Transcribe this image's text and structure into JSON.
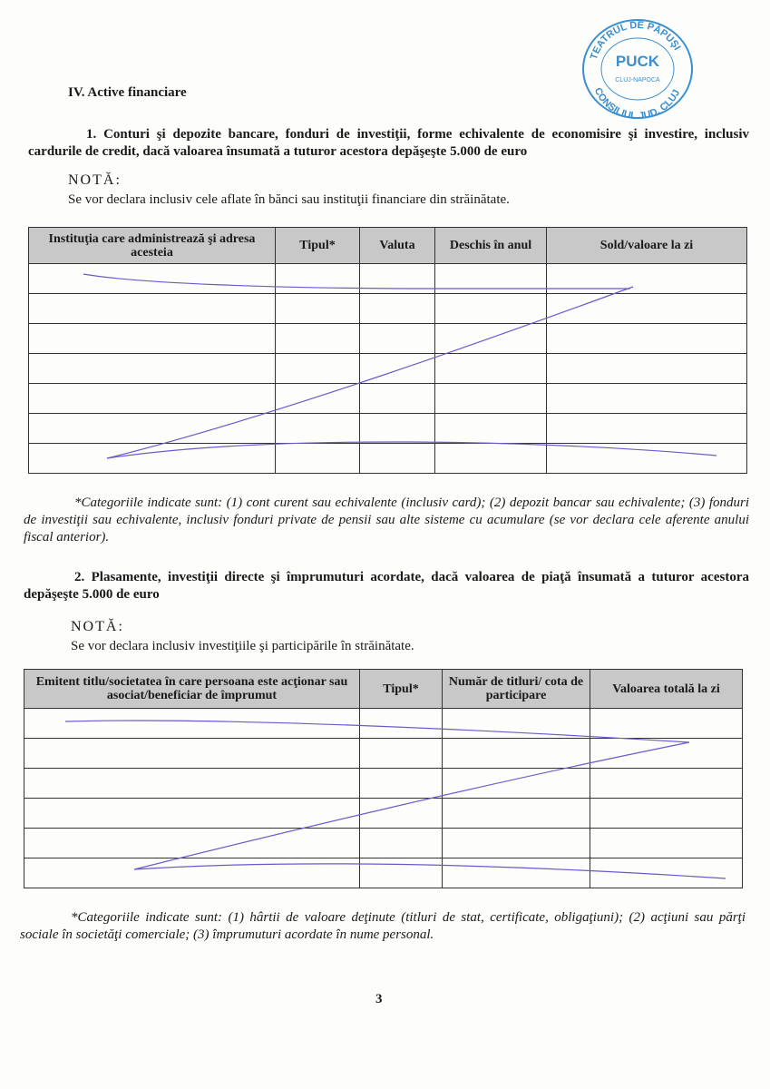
{
  "stamp": {
    "top": "TEATRUL DE PĂPUŞI",
    "center": "PUCK",
    "city": "CLUJ-NAPOCA",
    "bottom": "CONSILIUL JUD. CLUJ",
    "color": "#3a8fd0"
  },
  "section_title": "IV. Active financiare",
  "s1": {
    "heading": "1. Conturi şi depozite bancare, fonduri de investiţii, forme echivalente de economisire şi investire, inclusiv cardurile de credit, dacă valoarea însumată a tuturor acestora depăşeşte 5.000 de euro",
    "nota_label": "NOTĂ:",
    "nota_text": "Se vor declara inclusiv cele aflate în bănci sau instituţii financiare din străinătate.",
    "columns": [
      "Instituţia care administrează şi adresa acesteia",
      "Tipul*",
      "Valuta",
      "Deschis în anul",
      "Sold/valoare la zi"
    ],
    "row_count": 7,
    "footnote": "*Categoriile indicate sunt: (1) cont curent sau echivalente (inclusiv card); (2) depozit bancar sau echivalente; (3) fonduri de investiţii sau echivalente, inclusiv fonduri private de pensii sau alte sisteme cu acumulare (se vor declara cele aferente anului fiscal anterior)."
  },
  "s2": {
    "heading": "2. Plasamente, investiţii directe şi împrumuturi acordate, dacă valoarea de piaţă însumată a tuturor acestora depăşeşte 5.000 de euro",
    "nota_label": "NOTĂ:",
    "nota_text": "Se vor declara inclusiv investiţiile şi participările în străinătate.",
    "columns": [
      "Emitent titlu/societatea în care persoana este acţionar sau asociat/beneficiar de împrumut",
      "Tipul*",
      "Număr de titluri/ cota de participare",
      "Valoarea totală la zi"
    ],
    "row_count": 6,
    "footnote": "*Categoriile indicate sunt: (1) hârtii de valoare deţinute (titluri de stat, certificate, obligaţiuni); (2) acţiuni sau părţi sociale în societăţi comerciale; (3) împrumuturi acordate în nume personal."
  },
  "page_number": "3",
  "ink_color": "#6a5acd"
}
